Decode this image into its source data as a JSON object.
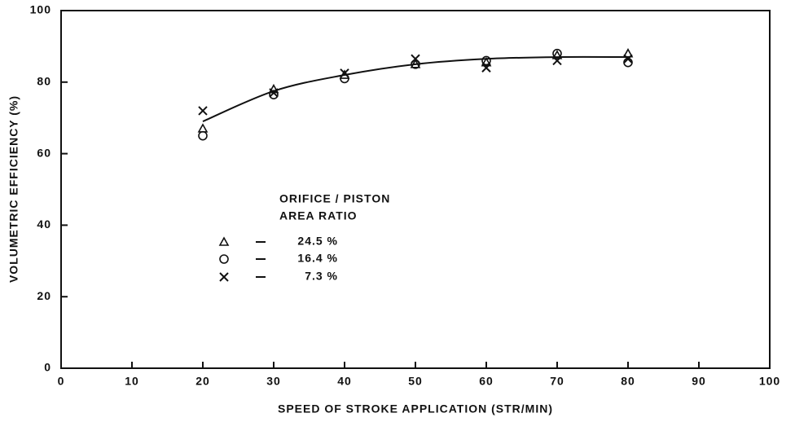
{
  "chart_data": {
    "type": "scatter",
    "xlabel": "SPEED OF STROKE APPLICATION (STR/MIN)",
    "ylabel": "VOLUMETRIC EFFICIENCY (%)",
    "xlim": [
      0,
      100
    ],
    "ylim": [
      0,
      100
    ],
    "xticks": [
      0,
      10,
      20,
      30,
      40,
      50,
      60,
      70,
      80,
      90,
      100
    ],
    "yticks": [
      0,
      20,
      40,
      60,
      80,
      100
    ],
    "legend_title": [
      "ORIFICE / PISTON",
      "AREA RATIO"
    ],
    "series": [
      {
        "name": "24.5 %",
        "marker": "triangle",
        "color": "#111111",
        "x": [
          20,
          30,
          40,
          50,
          60,
          70,
          80
        ],
        "values": [
          67,
          78,
          82,
          85,
          85.5,
          87.5,
          88
        ]
      },
      {
        "name": "16.4 %",
        "marker": "circle",
        "color": "#111111",
        "x": [
          20,
          30,
          40,
          50,
          60,
          70,
          80
        ],
        "values": [
          65,
          76.5,
          81,
          85,
          86,
          88,
          85.5
        ]
      },
      {
        "name": "7.3 %",
        "marker": "cross",
        "color": "#111111",
        "x": [
          20,
          30,
          40,
          50,
          60,
          70,
          80
        ],
        "values": [
          72,
          77,
          82.5,
          86.5,
          84,
          86,
          86.5
        ]
      }
    ],
    "curve": {
      "color": "#111111",
      "x": [
        20,
        30,
        40,
        50,
        60,
        70,
        80
      ],
      "values": [
        69,
        77.5,
        82,
        85,
        86.5,
        87,
        87
      ]
    }
  }
}
